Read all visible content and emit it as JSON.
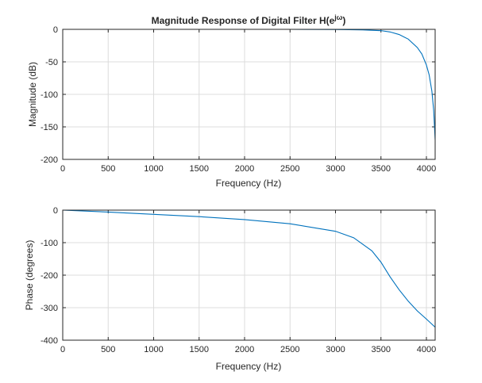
{
  "chart_data": [
    {
      "type": "line",
      "title": "Magnitude Response of Digital Filter H(e",
      "title_superscript": "jω",
      "title_suffix": ")",
      "xlabel": "Frequency (Hz)",
      "ylabel": "Magnitude (dB)",
      "xlim": [
        0,
        4096
      ],
      "ylim": [
        -200,
        0
      ],
      "xticks": [
        0,
        500,
        1000,
        1500,
        2000,
        2500,
        3000,
        3500,
        4000
      ],
      "yticks": [
        -200,
        -150,
        -100,
        -50,
        0
      ],
      "grid": true,
      "series": [
        {
          "color": "#0072bd",
          "x": [
            0,
            500,
            1000,
            1500,
            2000,
            2500,
            3000,
            3300,
            3500,
            3600,
            3700,
            3800,
            3900,
            3950,
            4000,
            4030,
            4060,
            4080,
            4096
          ],
          "y": [
            0,
            0,
            0,
            0,
            0,
            0,
            -0.3,
            -0.8,
            -2,
            -4,
            -8,
            -15,
            -28,
            -38,
            -55,
            -70,
            -95,
            -125,
            -170
          ]
        }
      ]
    },
    {
      "type": "line",
      "title": "",
      "xlabel": "Frequency (Hz)",
      "ylabel": "Phase (degrees)",
      "xlim": [
        0,
        4096
      ],
      "ylim": [
        -400,
        0
      ],
      "xticks": [
        0,
        500,
        1000,
        1500,
        2000,
        2500,
        3000,
        3500,
        4000
      ],
      "yticks": [
        -400,
        -300,
        -200,
        -100,
        0
      ],
      "grid": true,
      "series": [
        {
          "color": "#0072bd",
          "x": [
            0,
            500,
            1000,
            1500,
            2000,
            2500,
            3000,
            3200,
            3400,
            3500,
            3600,
            3700,
            3800,
            3900,
            4000,
            4096
          ],
          "y": [
            0,
            -6,
            -13,
            -20,
            -29,
            -42,
            -65,
            -85,
            -125,
            -160,
            -205,
            -245,
            -280,
            -310,
            -335,
            -360
          ]
        }
      ]
    }
  ]
}
